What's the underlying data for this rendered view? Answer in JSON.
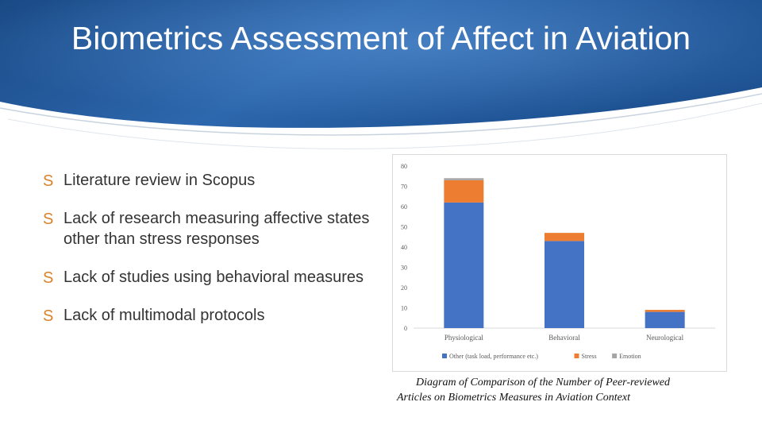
{
  "slide": {
    "title": "Biometrics Assessment of Affect in Aviation",
    "bullets": [
      "Lack of research measuring affective states other than stress responses",
      "Lack of studies using behavioral measures",
      "Lack of multimodal protocols"
    ],
    "bullet_first": "Literature review in Scopus",
    "caption_line1": "Diagram of Comparison of the Number of Peer-reviewed",
    "caption_line2": "Articles on Biometrics Measures in Aviation Context",
    "colors": {
      "header_dark": "#1e4f8c",
      "header_light": "#3f7ec7",
      "bullet_glyph": "#d9822b"
    }
  },
  "chart_data": {
    "type": "bar",
    "stacked": true,
    "categories": [
      "Physiological",
      "Behavioral",
      "Neurological"
    ],
    "series": [
      {
        "name": "Other (task load, performance etc.)",
        "color": "#4472c4",
        "values": [
          62,
          43,
          8
        ]
      },
      {
        "name": "Stress",
        "color": "#ed7d31",
        "values": [
          11,
          4,
          1
        ]
      },
      {
        "name": "Emotion",
        "color": "#a5a5a5",
        "values": [
          1,
          0,
          0
        ]
      }
    ],
    "ylim": [
      0,
      80
    ],
    "yticks": [
      "0",
      "10",
      "20",
      "30",
      "40",
      "50",
      "60",
      "70",
      "80"
    ],
    "legend_position": "bottom",
    "grid": false
  }
}
